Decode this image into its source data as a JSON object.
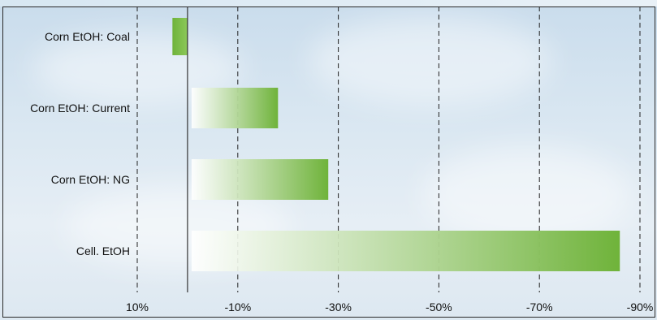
{
  "title": "",
  "chart_data": {
    "type": "bar",
    "orientation": "horizontal",
    "categories": [
      "Corn EtOH: Coal",
      "Corn EtOH: Current",
      "Corn EtOH: NG",
      "Cell. EtOH"
    ],
    "values": [
      3,
      -18,
      -28,
      -86
    ],
    "xlim": [
      10,
      -90
    ],
    "xticks": [
      10,
      -10,
      -30,
      -50,
      -70,
      -90
    ],
    "xtick_labels": [
      "10%",
      "-10%",
      "-30%",
      "-50%",
      "-70%",
      "-90%"
    ],
    "xlabel": "",
    "ylabel": "",
    "grid": "vertical dashed",
    "bar_color": "#6fb33a",
    "bar_fade_color": "#ffffff",
    "gridline_color": "#222222",
    "zero_line": true
  }
}
